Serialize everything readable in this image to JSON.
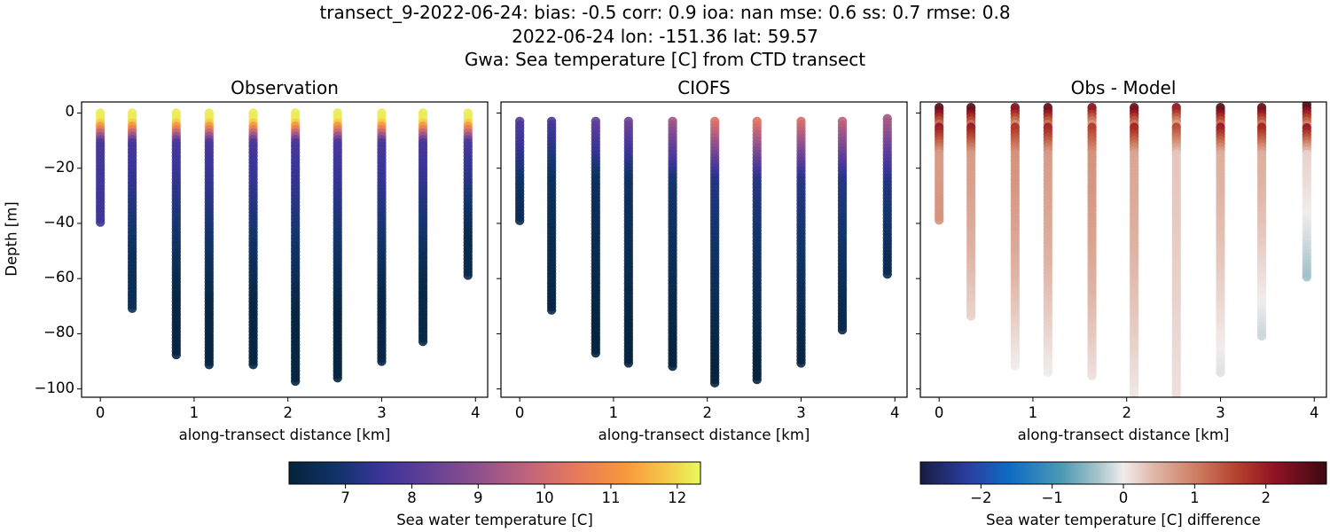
{
  "figure": {
    "title_lines": [
      "transect_9-2022-06-24: bias: -0.5  corr: 0.9  ioa: nan  mse: 0.6  ss: 0.7  rmse: 0.8",
      "2022-06-24 lon: -151.36 lat: 59.57",
      "Gwa: Sea temperature [C] from CTD transect"
    ]
  },
  "panels": [
    {
      "title": "Observation",
      "xlabel": "along-transect distance [km]",
      "ylabel": "Depth [m]"
    },
    {
      "title": "CIOFS",
      "xlabel": "along-transect distance [km]",
      "ylabel": ""
    },
    {
      "title": "Obs - Model",
      "xlabel": "along-transect distance [km]",
      "ylabel": ""
    }
  ],
  "axes": {
    "xticks": [
      "0",
      "1",
      "2",
      "3",
      "4"
    ],
    "yticks": [
      "0",
      "−20",
      "−40",
      "−60",
      "−80",
      "−100"
    ]
  },
  "colorbars": [
    {
      "label": "Sea water temperature [C]",
      "ticks": [
        "7",
        "8",
        "9",
        "10",
        "11",
        "12"
      ],
      "cmap": "thermal",
      "vmin": 6.15,
      "vmax": 12.35
    },
    {
      "label": "Sea water temperature [C] difference",
      "ticks": [
        "−2",
        "−1",
        "0",
        "1",
        "2"
      ],
      "cmap": "balance",
      "vmin": -2.85,
      "vmax": 2.85
    }
  ],
  "chart_data": [
    {
      "type": "scatter",
      "title": "Observation",
      "xlabel": "along-transect distance [km]",
      "ylabel": "Depth [m]",
      "xlim": [
        -0.2,
        4.13
      ],
      "ylim": [
        -103,
        4
      ],
      "xticks": [
        0,
        1,
        2,
        3,
        4
      ],
      "yticks": [
        0,
        -20,
        -40,
        -60,
        -80,
        -100
      ],
      "colorbar": {
        "label": "Sea water temperature [C]",
        "range": [
          6.15,
          12.35
        ]
      },
      "profiles": [
        {
          "x": 0.0,
          "top": 0,
          "bottom": -40,
          "surface_temp": 12.2,
          "deep_temp": 7.6
        },
        {
          "x": 0.34,
          "top": 0,
          "bottom": -72,
          "surface_temp": 12.2,
          "deep_temp": 6.6
        },
        {
          "x": 0.81,
          "top": 0,
          "bottom": -88,
          "surface_temp": 12.2,
          "deep_temp": 6.3
        },
        {
          "x": 1.16,
          "top": 0,
          "bottom": -92,
          "surface_temp": 12.2,
          "deep_temp": 6.3
        },
        {
          "x": 1.63,
          "top": 0,
          "bottom": -92,
          "surface_temp": 12.2,
          "deep_temp": 6.3
        },
        {
          "x": 2.08,
          "top": 0,
          "bottom": -98,
          "surface_temp": 12.2,
          "deep_temp": 6.25
        },
        {
          "x": 2.53,
          "top": 0,
          "bottom": -97,
          "surface_temp": 12.2,
          "deep_temp": 6.25
        },
        {
          "x": 3.0,
          "top": 0,
          "bottom": -91,
          "surface_temp": 12.2,
          "deep_temp": 6.3
        },
        {
          "x": 3.44,
          "top": 0,
          "bottom": -83,
          "surface_temp": 12.2,
          "deep_temp": 6.35
        },
        {
          "x": 3.92,
          "top": 0,
          "bottom": -59,
          "surface_temp": 12.2,
          "deep_temp": 6.4
        }
      ]
    },
    {
      "type": "scatter",
      "title": "CIOFS",
      "xlabel": "along-transect distance [km]",
      "xlim": [
        -0.2,
        4.13
      ],
      "ylim": [
        -103,
        4
      ],
      "profiles": [
        {
          "x": 0.0,
          "top": -3,
          "bottom": -40,
          "surface_temp": 7.9,
          "deep_temp": 6.5
        },
        {
          "x": 0.34,
          "top": -3,
          "bottom": -72,
          "surface_temp": 7.7,
          "deep_temp": 6.3
        },
        {
          "x": 0.81,
          "top": -3,
          "bottom": -88,
          "surface_temp": 8.2,
          "deep_temp": 6.2
        },
        {
          "x": 1.16,
          "top": -3,
          "bottom": -91,
          "surface_temp": 8.4,
          "deep_temp": 6.2
        },
        {
          "x": 1.63,
          "top": -3,
          "bottom": -92,
          "surface_temp": 9.2,
          "deep_temp": 6.2
        },
        {
          "x": 2.08,
          "top": -3,
          "bottom": -98,
          "surface_temp": 10.2,
          "deep_temp": 6.2
        },
        {
          "x": 2.53,
          "top": -3,
          "bottom": -97,
          "surface_temp": 10.3,
          "deep_temp": 6.2
        },
        {
          "x": 3.0,
          "top": -3,
          "bottom": -91,
          "surface_temp": 10.1,
          "deep_temp": 6.3
        },
        {
          "x": 3.44,
          "top": -3,
          "bottom": -79,
          "surface_temp": 9.7,
          "deep_temp": 6.4
        },
        {
          "x": 3.92,
          "top": -2,
          "bottom": -59,
          "surface_temp": 9.3,
          "deep_temp": 6.5
        }
      ]
    },
    {
      "type": "scatter",
      "title": "Obs - Model",
      "xlabel": "along-transect distance [km]",
      "xlim": [
        -0.2,
        4.13
      ],
      "ylim": [
        -103,
        4
      ],
      "colorbar": {
        "label": "Sea water temperature [C] difference",
        "range": [
          -2.85,
          2.85
        ]
      },
      "profiles": [
        {
          "x": 0.0,
          "top": 2,
          "bottom": -39,
          "surface_diff": 2.7,
          "mid_diff": 0.7,
          "deep_diff": 0.8
        },
        {
          "x": 0.34,
          "top": 2,
          "bottom": -74,
          "surface_diff": 2.7,
          "mid_diff": 0.7,
          "deep_diff": 0.2
        },
        {
          "x": 0.81,
          "top": 2,
          "bottom": -92,
          "surface_diff": 2.4,
          "mid_diff": 0.8,
          "deep_diff": 0.0
        },
        {
          "x": 1.16,
          "top": 2,
          "bottom": -95,
          "surface_diff": 2.6,
          "mid_diff": 0.7,
          "deep_diff": 0.0
        },
        {
          "x": 1.63,
          "top": 2,
          "bottom": -96,
          "surface_diff": 2.3,
          "mid_diff": 0.8,
          "deep_diff": 0.1
        },
        {
          "x": 2.08,
          "top": 2,
          "bottom": -103,
          "surface_diff": 2.6,
          "mid_diff": 0.6,
          "deep_diff": 0.05
        },
        {
          "x": 2.53,
          "top": 2,
          "bottom": -103,
          "surface_diff": 2.2,
          "mid_diff": 0.3,
          "deep_diff": 0.1
        },
        {
          "x": 3.0,
          "top": 2,
          "bottom": -95,
          "surface_diff": 2.7,
          "mid_diff": 0.5,
          "deep_diff": -0.1
        },
        {
          "x": 3.44,
          "top": 2,
          "bottom": -82,
          "surface_diff": 2.6,
          "mid_diff": 0.5,
          "deep_diff": -0.2
        },
        {
          "x": 3.92,
          "top": 3,
          "bottom": -60,
          "surface_diff": 2.8,
          "mid_diff": 0.2,
          "deep_diff": -0.4
        }
      ]
    }
  ]
}
